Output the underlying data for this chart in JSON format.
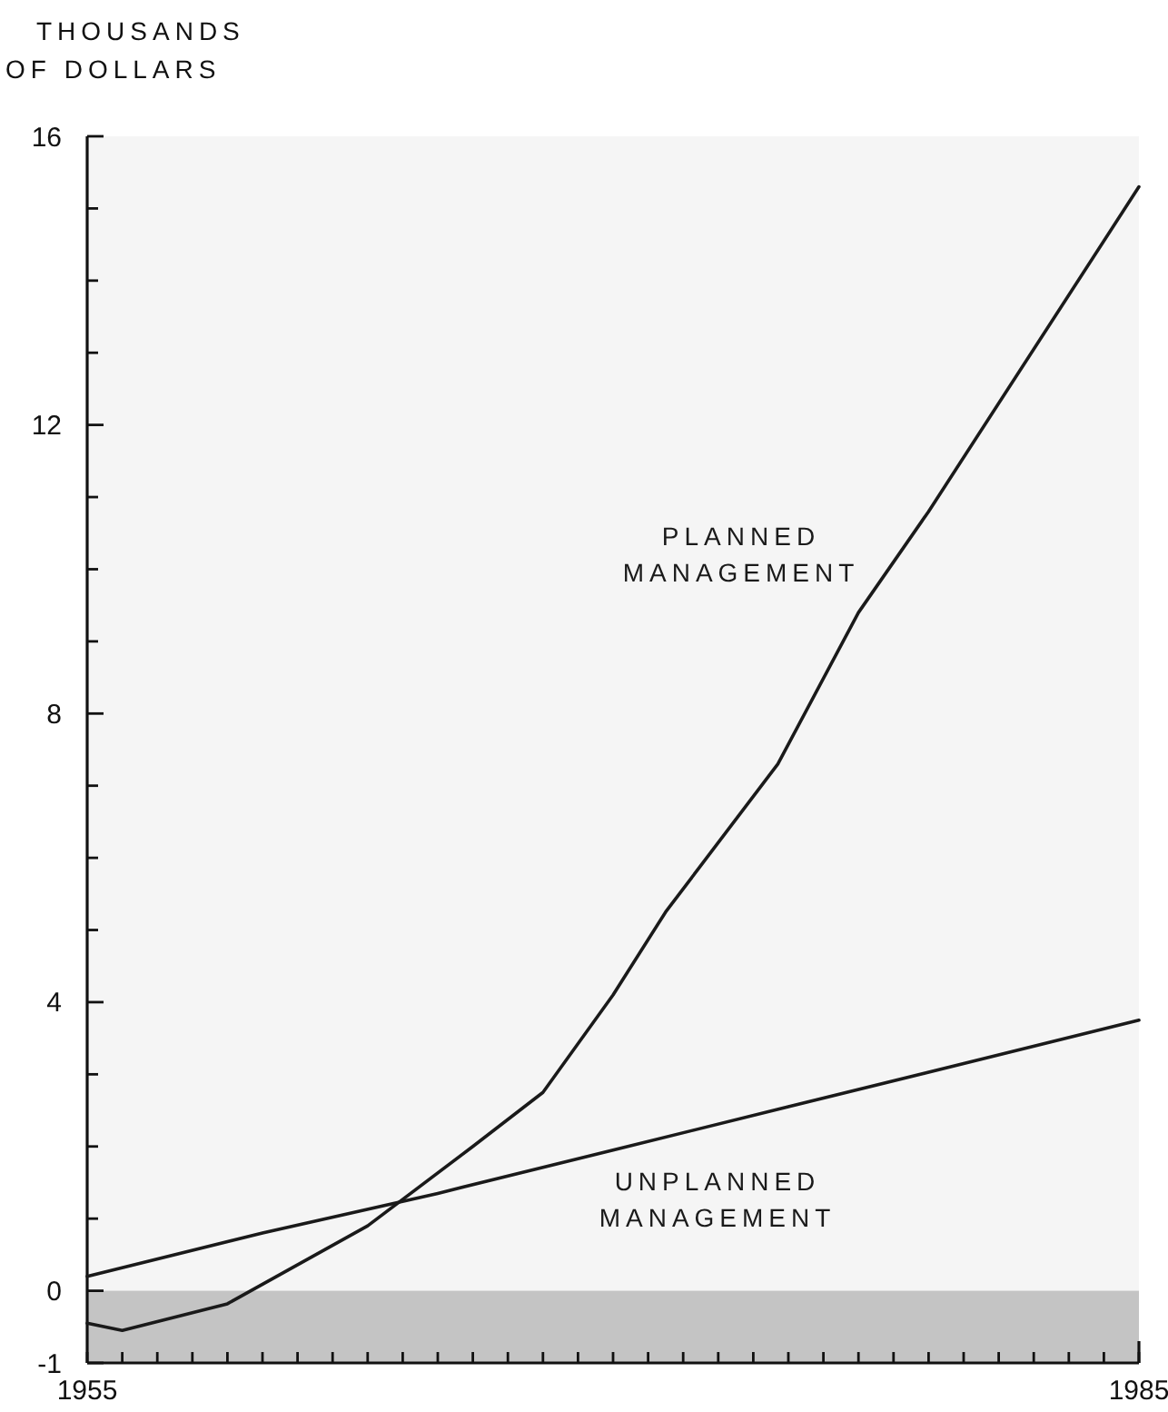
{
  "chart_data": {
    "type": "line",
    "ylabel": "THOUSANDS OF DOLLARS",
    "xlim": [
      1955,
      1985
    ],
    "ylim": [
      -1,
      16
    ],
    "xticks": [
      1955,
      {
        "value": 1956,
        "label": null
      },
      {
        "value": 1957,
        "label": null
      },
      {
        "value": 1958,
        "label": null
      },
      {
        "value": 1959,
        "label": null
      },
      {
        "value": 1960,
        "label": null
      },
      {
        "value": 1961,
        "label": null
      },
      {
        "value": 1962,
        "label": null
      },
      {
        "value": 1963,
        "label": null
      },
      {
        "value": 1964,
        "label": null
      },
      {
        "value": 1965,
        "label": null
      },
      {
        "value": 1966,
        "label": null
      },
      {
        "value": 1967,
        "label": null
      },
      {
        "value": 1968,
        "label": null
      },
      {
        "value": 1969,
        "label": null
      },
      {
        "value": 1970,
        "label": null
      },
      {
        "value": 1971,
        "label": null
      },
      {
        "value": 1972,
        "label": null
      },
      {
        "value": 1973,
        "label": null
      },
      {
        "value": 1974,
        "label": null
      },
      {
        "value": 1975,
        "label": null
      },
      {
        "value": 1976,
        "label": null
      },
      {
        "value": 1977,
        "label": null
      },
      {
        "value": 1978,
        "label": null
      },
      {
        "value": 1979,
        "label": null
      },
      {
        "value": 1980,
        "label": null
      },
      {
        "value": 1981,
        "label": null
      },
      {
        "value": 1982,
        "label": null
      },
      {
        "value": 1983,
        "label": null
      },
      {
        "value": 1984,
        "label": null
      },
      1985
    ],
    "yticks": [
      -1,
      0,
      {
        "value": 1,
        "label": null
      },
      {
        "value": 2,
        "label": null
      },
      {
        "value": 3,
        "label": null
      },
      4,
      {
        "value": 5,
        "label": null
      },
      {
        "value": 6,
        "label": null
      },
      {
        "value": 7,
        "label": null
      },
      8,
      {
        "value": 9,
        "label": null
      },
      {
        "value": 10,
        "label": null
      },
      {
        "value": 11,
        "label": null
      },
      12,
      {
        "value": 13,
        "label": null
      },
      {
        "value": 14,
        "label": null
      },
      {
        "value": 15,
        "label": null
      },
      16
    ],
    "grid": false,
    "marker": "none",
    "line_style": "solid",
    "series": [
      {
        "name": "PLANNED MANAGEMENT",
        "color": "#1a1a1a",
        "x": [
          1955,
          1956,
          1959,
          1963,
          1966,
          1968,
          1970,
          1971.5,
          1974.7,
          1977,
          1979,
          1985
        ],
        "values": [
          -0.45,
          -0.55,
          -0.18,
          0.9,
          2.0,
          2.75,
          4.1,
          5.25,
          7.3,
          9.4,
          10.8,
          15.3
        ]
      },
      {
        "name": "UNPLANNED MANAGEMENT",
        "color": "#1a1a1a",
        "x": [
          1955,
          1960,
          1965,
          1970,
          1975,
          1980,
          1985
        ],
        "values": [
          0.2,
          0.8,
          1.35,
          1.95,
          2.55,
          3.15,
          3.75
        ]
      }
    ],
    "bands": [
      {
        "axis": "y",
        "from": -1,
        "to": 0,
        "color": "#c4c4c4"
      }
    ]
  }
}
